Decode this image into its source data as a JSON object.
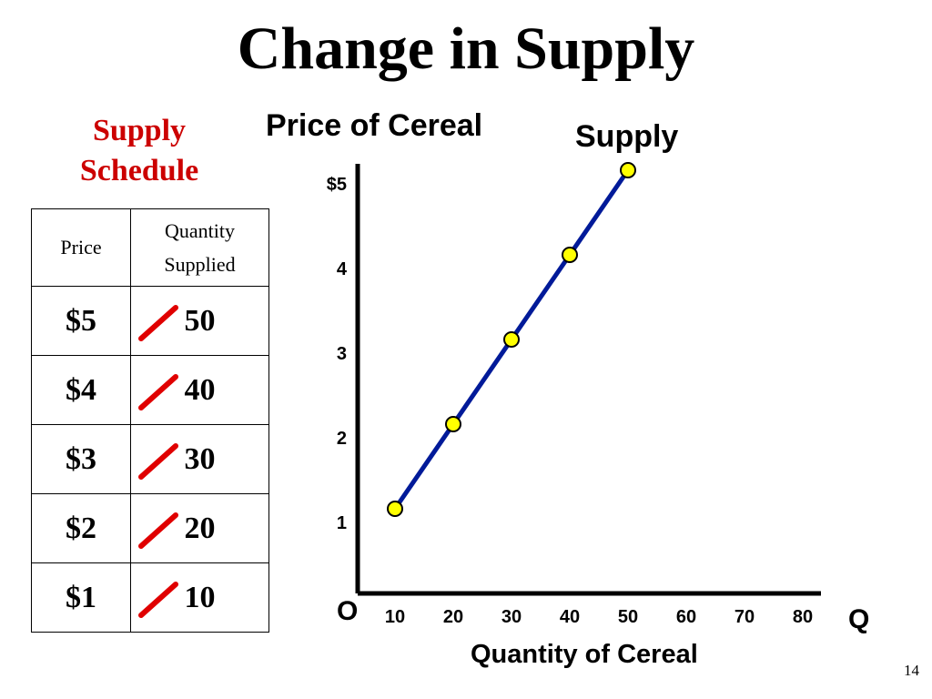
{
  "slide": {
    "title": "Change in Supply",
    "page_number": "14"
  },
  "schedule": {
    "heading_line1": "Supply",
    "heading_line2": "Schedule",
    "header_price": "Price",
    "header_qty_line1": "Quantity",
    "header_qty_line2": "Supplied",
    "rows": [
      {
        "price": "$5",
        "quantity": "50"
      },
      {
        "price": "$4",
        "quantity": "40"
      },
      {
        "price": "$3",
        "quantity": "30"
      },
      {
        "price": "$2",
        "quantity": "20"
      },
      {
        "price": "$1",
        "quantity": "10"
      }
    ],
    "strike_color": "#e00000"
  },
  "chart_data": {
    "type": "line",
    "title": "Price of Cereal",
    "xlabel": "Quantity of Cereal",
    "ylabel": "",
    "x_axis_letter": "Q",
    "origin_label": "O",
    "series": [
      {
        "name": "Supply",
        "x": [
          10,
          20,
          30,
          40,
          50
        ],
        "y": [
          1,
          2,
          3,
          4,
          5
        ]
      }
    ],
    "x_ticks": [
      10,
      20,
      30,
      40,
      50,
      60,
      70,
      80
    ],
    "x_tick_labels": [
      "10",
      "20",
      "30",
      "40",
      "50",
      "60",
      "70",
      "80"
    ],
    "y_ticks": [
      1,
      2,
      3,
      4,
      5
    ],
    "y_tick_labels": [
      "1",
      "2",
      "3",
      "4",
      "$5"
    ],
    "xlim": [
      0,
      80
    ],
    "ylim": [
      0,
      5
    ],
    "grid": false,
    "line_color": "#001a99",
    "marker_color": "#ffff00"
  }
}
